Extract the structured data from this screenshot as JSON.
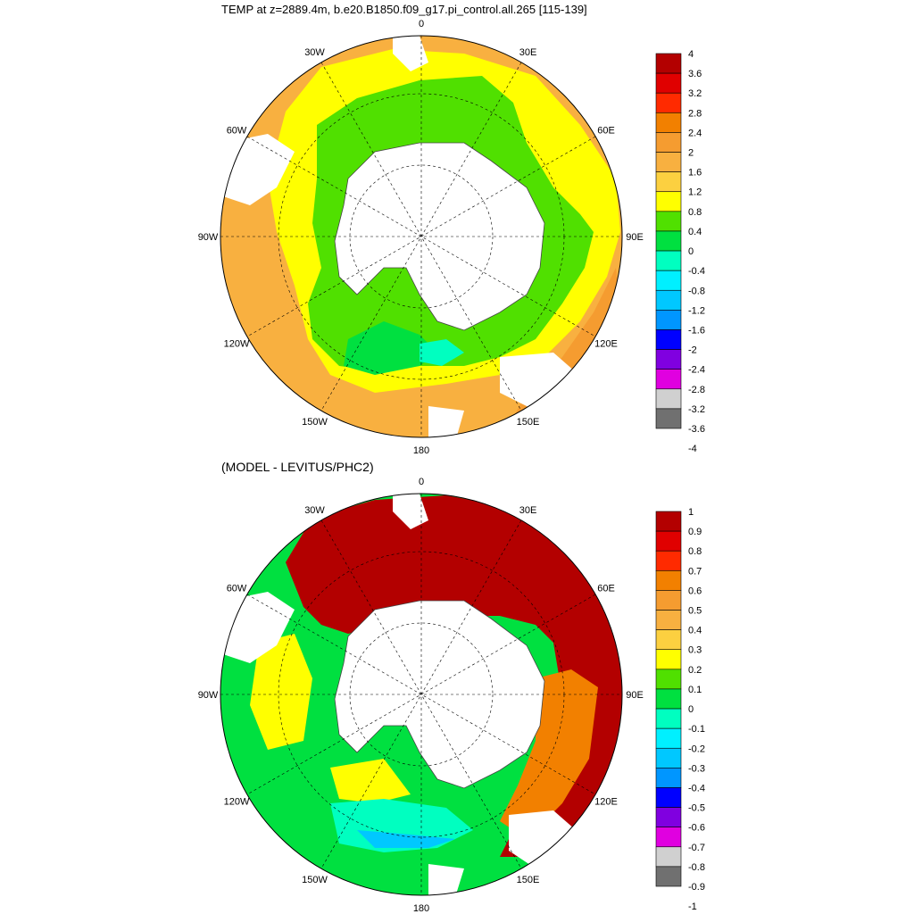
{
  "titles": {
    "top": "TEMP at z=2889.4m, b.e20.B1850.f09_g17.pi_control.all.265 [115-139]",
    "bottom": "(MODEL - LEVITUS/PHC2)"
  },
  "longitude_labels": [
    "0",
    "30E",
    "60E",
    "90E",
    "120E",
    "150E",
    "180",
    "150W",
    "120W",
    "90W",
    "60W",
    "30W"
  ],
  "colorbar_top": {
    "labels": [
      "4",
      "3.6",
      "3.2",
      "2.8",
      "2.4",
      "2",
      "1.6",
      "1.2",
      "0.8",
      "0.4",
      "0",
      "-0.4",
      "-0.8",
      "-1.2",
      "-1.6",
      "-2",
      "-2.4",
      "-2.8",
      "-3.2",
      "-3.6",
      "-4"
    ],
    "colors": [
      "#b30000",
      "#e00000",
      "#ff2a00",
      "#f28000",
      "#f59c30",
      "#f8b040",
      "#fcd040",
      "#ffff00",
      "#50e000",
      "#00e040",
      "#00ffc0",
      "#00f0ff",
      "#00c8ff",
      "#0096ff",
      "#0000ff",
      "#8000e0",
      "#e000e0",
      "#d0d0d0",
      "#707070"
    ]
  },
  "colorbar_bottom": {
    "labels": [
      "1",
      "0.9",
      "0.8",
      "0.7",
      "0.6",
      "0.5",
      "0.4",
      "0.3",
      "0.2",
      "0.1",
      "0",
      "-0.1",
      "-0.2",
      "-0.3",
      "-0.4",
      "-0.5",
      "-0.6",
      "-0.7",
      "-0.8",
      "-0.9",
      "-1"
    ],
    "colors": [
      "#b30000",
      "#e00000",
      "#ff2a00",
      "#f28000",
      "#f59c30",
      "#f8b040",
      "#fcd040",
      "#ffff00",
      "#50e000",
      "#00e040",
      "#00ffc0",
      "#00f0ff",
      "#00c8ff",
      "#0096ff",
      "#0000ff",
      "#8000e0",
      "#e000e0",
      "#d0d0d0",
      "#707070"
    ]
  }
}
